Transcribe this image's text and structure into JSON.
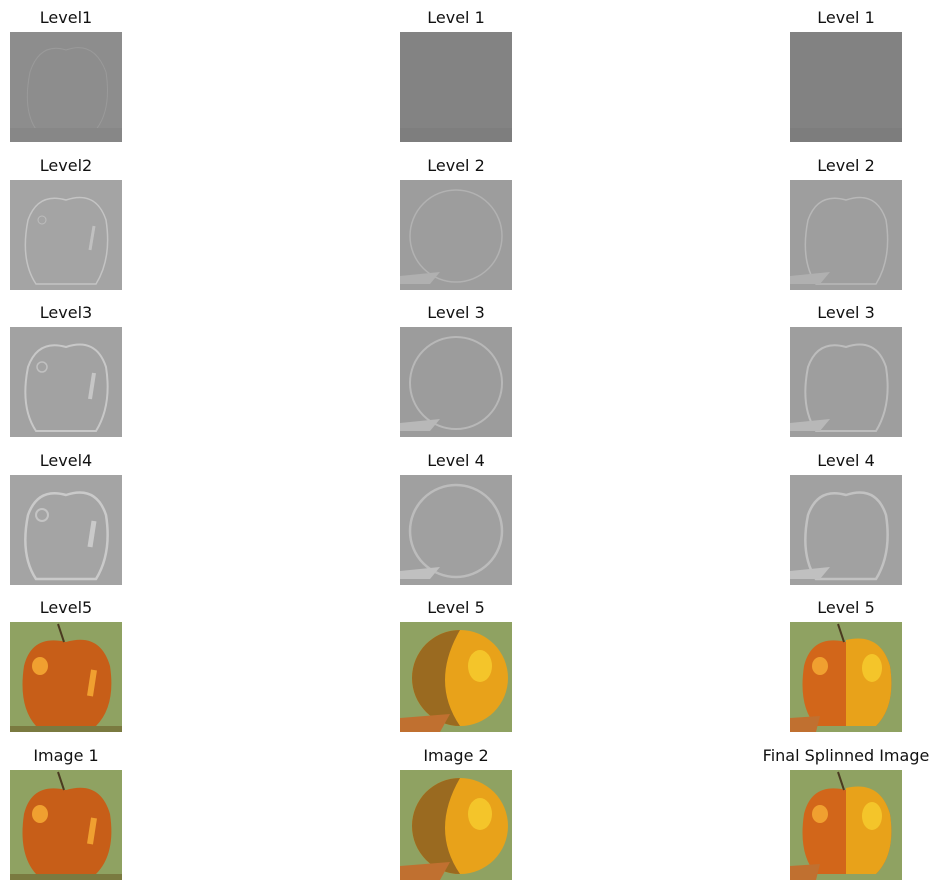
{
  "figure": {
    "rows": [
      {
        "titles": [
          "Level1",
          "Level 1",
          "Level 1"
        ],
        "kind": "laplacian-fine"
      },
      {
        "titles": [
          "Level2",
          "Level 2",
          "Level 2"
        ],
        "kind": "laplacian"
      },
      {
        "titles": [
          "Level3",
          "Level 3",
          "Level 3"
        ],
        "kind": "laplacian"
      },
      {
        "titles": [
          "Level4",
          "Level 4",
          "Level 4"
        ],
        "kind": "laplacian"
      },
      {
        "titles": [
          "Level5",
          "Level 5",
          "Level 5"
        ],
        "kind": "color"
      },
      {
        "titles": [
          "Image 1",
          "Image 2",
          "Final Splinned Image"
        ],
        "kind": "color"
      }
    ],
    "colors": {
      "apple": "#d2661a",
      "apple_dark": "#8a3a12",
      "orange": "#e8a21a",
      "orange_light": "#f4c52a",
      "background_green": "#8fa262",
      "gray_fine": "#858585",
      "gray_mid": "#9c9c9c",
      "gray_light": "#a8a8a8"
    }
  }
}
